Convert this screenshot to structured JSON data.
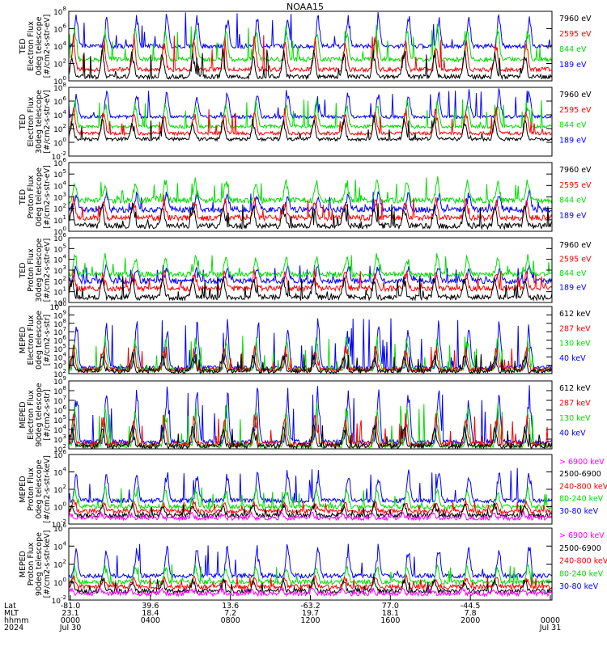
{
  "title": "NOAA15",
  "colors": {
    "blue": "#0000ff",
    "red": "#ff0000",
    "green": "#00dd00",
    "black": "#000000",
    "magenta": "#ff00ff"
  },
  "chart_data": [
    {
      "type": "line",
      "ylabel": [
        "TED",
        "Electron Flux",
        "0deg telescope",
        "[#/cm2-s-str-eV]"
      ],
      "ylim": [
        1,
        100000000
      ],
      "yscale": "log",
      "yticks": [
        {
          "e": "0",
          "v": 1
        },
        {
          "e": "2",
          "v": 100
        },
        {
          "e": "4",
          "v": 10000
        },
        {
          "e": "6",
          "v": 1000000
        },
        {
          "e": "8",
          "v": 100000000
        }
      ],
      "series": [
        {
          "name": "7960 eV",
          "color": "black",
          "base": 3,
          "spike": 5000
        },
        {
          "name": "2595 eV",
          "color": "red",
          "base": 20,
          "spike": 200000
        },
        {
          "name": "844 eV",
          "color": "green",
          "base": 300,
          "spike": 3000000
        },
        {
          "name": "189 eV",
          "color": "blue",
          "base": 10000,
          "spike": 80000000
        }
      ]
    },
    {
      "type": "line",
      "ylabel": [
        "TED",
        "Electron Flux",
        "30deg telescope",
        "[#/cm2-s-str-eV]"
      ],
      "ylim": [
        0.01,
        100000000
      ],
      "yscale": "log",
      "yticks": [
        {
          "e": "-2",
          "v": 0.01
        },
        {
          "e": "0",
          "v": 1
        },
        {
          "e": "2",
          "v": 100
        },
        {
          "e": "4",
          "v": 10000
        },
        {
          "e": "6",
          "v": 1000000
        },
        {
          "e": "8",
          "v": 100000000
        }
      ],
      "series": [
        {
          "name": "7960 eV",
          "color": "black",
          "base": 3,
          "spike": 5000
        },
        {
          "name": "2595 eV",
          "color": "red",
          "base": 20,
          "spike": 100000
        },
        {
          "name": "844 eV",
          "color": "green",
          "base": 200,
          "spike": 2000000
        },
        {
          "name": "189 eV",
          "color": "blue",
          "base": 5000,
          "spike": 50000000
        }
      ]
    },
    {
      "type": "line",
      "ylabel": [
        "TED",
        "Proton Flux",
        "0deg telescope",
        "[#/cm2-s-str-eV]"
      ],
      "ylim": [
        1,
        1000000
      ],
      "yscale": "log",
      "yticks": [
        {
          "e": "0",
          "v": 1
        },
        {
          "e": "1",
          "v": 10
        },
        {
          "e": "2",
          "v": 100
        },
        {
          "e": "3",
          "v": 1000
        },
        {
          "e": "4",
          "v": 10000
        },
        {
          "e": "5",
          "v": 100000
        },
        {
          "e": "6",
          "v": 1000000
        }
      ],
      "series": [
        {
          "name": "7960 eV",
          "color": "black",
          "base": 3,
          "spike": 300
        },
        {
          "name": "2595 eV",
          "color": "red",
          "base": 15,
          "spike": 1000
        },
        {
          "name": "844 eV",
          "color": "green",
          "base": 500,
          "spike": 50000
        },
        {
          "name": "189 eV",
          "color": "blue",
          "base": 80,
          "spike": 3000
        }
      ]
    },
    {
      "type": "line",
      "ylabel": [
        "TED",
        "Proton Flux",
        "30deg telescope",
        "[#/cm2-s-str-eV]"
      ],
      "ylim": [
        1,
        1000000
      ],
      "yscale": "log",
      "yticks": [
        {
          "e": "0",
          "v": 1
        },
        {
          "e": "1",
          "v": 10
        },
        {
          "e": "2",
          "v": 100
        },
        {
          "e": "3",
          "v": 1000
        },
        {
          "e": "4",
          "v": 10000
        },
        {
          "e": "5",
          "v": 100000
        },
        {
          "e": "6",
          "v": 1000000
        }
      ],
      "series": [
        {
          "name": "7960 eV",
          "color": "black",
          "base": 3,
          "spike": 300
        },
        {
          "name": "2595 eV",
          "color": "red",
          "base": 20,
          "spike": 1000
        },
        {
          "name": "844 eV",
          "color": "green",
          "base": 400,
          "spike": 30000
        },
        {
          "name": "189 eV",
          "color": "blue",
          "base": 100,
          "spike": 3000
        }
      ]
    },
    {
      "type": "line",
      "ylabel": [
        "MEPED",
        "Electron Flux",
        "0deg telescope",
        "[#/cm2-s-str]"
      ],
      "ylim": [
        100,
        10000000000
      ],
      "yscale": "log",
      "yticks": [
        {
          "e": "2",
          "v": 100
        },
        {
          "e": "3",
          "v": 1000
        },
        {
          "e": "4",
          "v": 10000
        },
        {
          "e": "5",
          "v": 100000
        },
        {
          "e": "6",
          "v": 1000000
        },
        {
          "e": "7",
          "v": 10000000
        },
        {
          "e": "8",
          "v": 100000000
        },
        {
          "e": "9",
          "v": 1000000000
        },
        {
          "e": "10",
          "v": 10000000000
        }
      ],
      "series": [
        {
          "name": "612 keV",
          "color": "black",
          "base": 200,
          "spike": 30000
        },
        {
          "name": "287 keV",
          "color": "red",
          "base": 300,
          "spike": 300000
        },
        {
          "name": "130 keV",
          "color": "green",
          "base": 300,
          "spike": 5000000
        },
        {
          "name": "40 keV",
          "color": "blue",
          "base": 500,
          "spike": 500000000
        }
      ]
    },
    {
      "type": "line",
      "ylabel": [
        "MEPED",
        "Electron Flux",
        "90deg telescope",
        "[#/cm2-s-str]"
      ],
      "ylim": [
        100,
        1000000000
      ],
      "yscale": "log",
      "yticks": [
        {
          "e": "2",
          "v": 100
        },
        {
          "e": "3",
          "v": 1000
        },
        {
          "e": "4",
          "v": 10000
        },
        {
          "e": "5",
          "v": 100000
        },
        {
          "e": "6",
          "v": 1000000
        },
        {
          "e": "7",
          "v": 10000000
        },
        {
          "e": "8",
          "v": 100000000
        },
        {
          "e": "9",
          "v": 1000000000
        }
      ],
      "series": [
        {
          "name": "612 keV",
          "color": "black",
          "base": 200,
          "spike": 30000
        },
        {
          "name": "287 keV",
          "color": "red",
          "base": 300,
          "spike": 500000
        },
        {
          "name": "130 keV",
          "color": "green",
          "base": 200,
          "spike": 5000000
        },
        {
          "name": "40 keV",
          "color": "blue",
          "base": 500,
          "spike": 300000000
        }
      ]
    },
    {
      "type": "line",
      "ylabel": [
        "MEPED",
        "Proton Flux",
        "0deg telescope",
        "[#/cm2-s-str-keV]"
      ],
      "ylim": [
        0.01,
        1000000
      ],
      "yscale": "log",
      "yticks": [
        {
          "e": "-2",
          "v": 0.01
        },
        {
          "e": "0",
          "v": 1
        },
        {
          "e": "2",
          "v": 100
        },
        {
          "e": "4",
          "v": 10000
        },
        {
          "e": "6",
          "v": 1000000
        }
      ],
      "series": [
        {
          "name": "> 6900 keV",
          "color": "magenta",
          "base": 0.05,
          "spike": 0.2
        },
        {
          "name": "2500-6900",
          "color": "black",
          "base": 0.1,
          "spike": 3
        },
        {
          "name": "240-800 keV",
          "color": "red",
          "base": 0.3,
          "spike": 5
        },
        {
          "name": "80-240 keV",
          "color": "green",
          "base": 1,
          "spike": 200
        },
        {
          "name": "30-80 keV",
          "color": "blue",
          "base": 5,
          "spike": 30000
        }
      ]
    },
    {
      "type": "line",
      "ylabel": [
        "MEPED",
        "Proton Flux",
        "90deg telescope",
        "[#/cm2-s-str-keV]"
      ],
      "ylim": [
        0.01,
        1000000
      ],
      "yscale": "log",
      "yticks": [
        {
          "e": "-2",
          "v": 0.01
        },
        {
          "e": "0",
          "v": 1
        },
        {
          "e": "2",
          "v": 100
        },
        {
          "e": "4",
          "v": 10000
        },
        {
          "e": "6",
          "v": 1000000
        }
      ],
      "series": [
        {
          "name": "> 6900 keV",
          "color": "magenta",
          "base": 0.05,
          "spike": 0.2
        },
        {
          "name": "2500-6900",
          "color": "black",
          "base": 0.1,
          "spike": 3
        },
        {
          "name": "240-800 keV",
          "color": "red",
          "base": 0.3,
          "spike": 5
        },
        {
          "name": "80-240 keV",
          "color": "green",
          "base": 1,
          "spike": 100
        },
        {
          "name": "30-80 keV",
          "color": "blue",
          "base": 5,
          "spike": 20000
        }
      ]
    }
  ],
  "xaxis": {
    "row_labels": [
      "Lat",
      "MLT",
      "hhmm",
      "2024"
    ],
    "ticks": [
      {
        "lat": "-81.0",
        "mlt": "23.1",
        "hhmm": "0000",
        "date": "Jul 30"
      },
      {
        "lat": "39.6",
        "mlt": "18.4",
        "hhmm": "0400",
        "date": ""
      },
      {
        "lat": "13.6",
        "mlt": "7.2",
        "hhmm": "0800",
        "date": ""
      },
      {
        "lat": "-63.2",
        "mlt": "19.7",
        "hhmm": "1200",
        "date": ""
      },
      {
        "lat": "77.0",
        "mlt": "18.1",
        "hhmm": "1600",
        "date": ""
      },
      {
        "lat": "-44.5",
        "mlt": "7.8",
        "hhmm": "2000",
        "date": ""
      },
      {
        "lat": "",
        "mlt": "",
        "hhmm": "0000",
        "date": "Jul 31"
      }
    ]
  }
}
